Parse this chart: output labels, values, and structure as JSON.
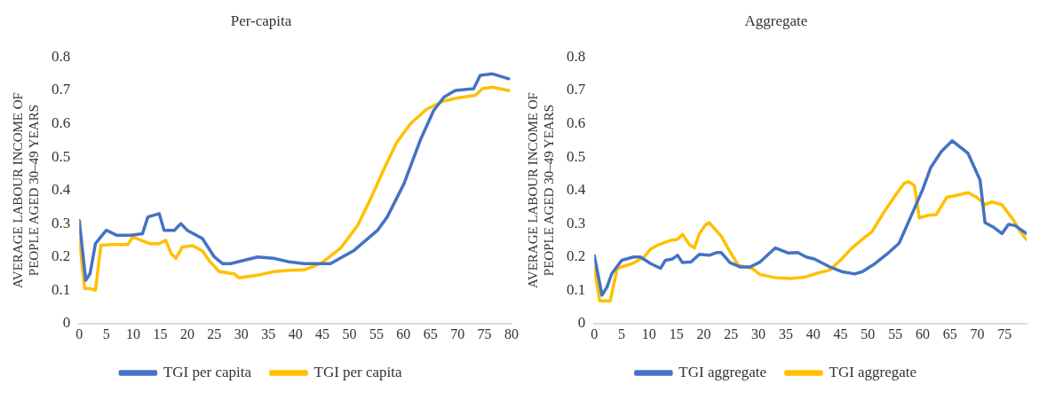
{
  "chart_data": [
    {
      "type": "line",
      "title": "Per-capita",
      "ylabel": "AVERAGE LABOUR INCOME OF PEOPLE AGED 30–49 YEARS",
      "xlim": [
        0,
        80
      ],
      "xticks": [
        0,
        5,
        10,
        15,
        20,
        25,
        30,
        35,
        40,
        45,
        50,
        55,
        60,
        65,
        70,
        75,
        80
      ],
      "ylim": [
        0,
        0.8
      ],
      "yticks": [
        0,
        0.1,
        0.2,
        0.3,
        0.4,
        0.5,
        0.6,
        0.7,
        0.8
      ],
      "grid": false,
      "legend": "bottom",
      "marker": "none",
      "line_style": "solid",
      "series": [
        {
          "name": "TGI per capita",
          "color": "#4472c4",
          "x": [
            0,
            1.2,
            2,
            3,
            5,
            7,
            9.5,
            11.7,
            12.7,
            14.8,
            15.7,
            17.6,
            18.8,
            20,
            22.8,
            25,
            26.5,
            28,
            30.5,
            33,
            36,
            38.9,
            41.6,
            46.5,
            50.9,
            55.2,
            57,
            60.1,
            63.1,
            65.6,
            67.5,
            69.6,
            73,
            74.2,
            76.4,
            79.5
          ],
          "values": [
            0.31,
            0.13,
            0.15,
            0.24,
            0.28,
            0.265,
            0.265,
            0.27,
            0.32,
            0.33,
            0.28,
            0.28,
            0.3,
            0.28,
            0.255,
            0.2,
            0.18,
            0.18,
            0.19,
            0.2,
            0.196,
            0.185,
            0.18,
            0.18,
            0.22,
            0.28,
            0.32,
            0.42,
            0.55,
            0.64,
            0.68,
            0.7,
            0.705,
            0.745,
            0.75,
            0.735
          ]
        },
        {
          "name": "TGI per capita",
          "color": "#ffc000",
          "x": [
            0,
            1,
            2,
            3,
            4,
            5.9,
            9,
            9.9,
            13,
            14.8,
            16,
            17,
            17.9,
            19.1,
            21,
            22.8,
            24,
            25.9,
            27.5,
            28.7,
            29.6,
            33,
            36,
            38.9,
            41.6,
            44.7,
            48.4,
            51.5,
            53.9,
            56.4,
            58.8,
            61.3,
            64.3,
            67.4,
            69.9,
            73.3,
            74.6,
            76.4,
            79.5
          ],
          "values": [
            0.255,
            0.105,
            0.105,
            0.1,
            0.235,
            0.237,
            0.237,
            0.26,
            0.24,
            0.24,
            0.25,
            0.21,
            0.196,
            0.23,
            0.234,
            0.218,
            0.19,
            0.156,
            0.152,
            0.149,
            0.137,
            0.145,
            0.156,
            0.16,
            0.161,
            0.18,
            0.227,
            0.294,
            0.374,
            0.464,
            0.545,
            0.6,
            0.644,
            0.668,
            0.677,
            0.685,
            0.705,
            0.71,
            0.7
          ]
        }
      ]
    },
    {
      "type": "line",
      "title": "Aggregate",
      "ylabel": "AVERAGE LABOUR INCOME OF PEOPLE AGED 30–49 YEARS",
      "xlim": [
        0,
        79
      ],
      "xticks": [
        0,
        5,
        10,
        15,
        20,
        25,
        30,
        35,
        40,
        45,
        50,
        55,
        60,
        65,
        70,
        75
      ],
      "ylim": [
        0,
        0.8
      ],
      "yticks": [
        0,
        0.1,
        0.2,
        0.3,
        0.4,
        0.5,
        0.6,
        0.7,
        0.8
      ],
      "grid": false,
      "legend": "bottom",
      "marker": "none",
      "line_style": "solid",
      "series": [
        {
          "name": "TGI aggregate",
          "color": "#4472c4",
          "x": [
            0,
            1.4,
            2.3,
            3.2,
            5,
            7.2,
            8.4,
            10.3,
            12.1,
            13,
            14.3,
            15.2,
            16.1,
            17.7,
            19.2,
            21,
            22.3,
            23.2,
            24.8,
            26.6,
            28.5,
            30.3,
            33.1,
            35.4,
            37.2,
            38.7,
            40.2,
            43.3,
            45.2,
            47.6,
            49,
            51.3,
            53.8,
            55.7,
            57.5,
            60,
            61.5,
            63.4,
            65.4,
            68.3,
            70.5,
            71.4,
            73,
            74.5,
            75.7,
            76.9,
            79
          ],
          "values": [
            0.204,
            0.085,
            0.109,
            0.15,
            0.19,
            0.2,
            0.2,
            0.18,
            0.166,
            0.19,
            0.194,
            0.205,
            0.183,
            0.185,
            0.208,
            0.205,
            0.213,
            0.213,
            0.183,
            0.17,
            0.17,
            0.185,
            0.227,
            0.212,
            0.213,
            0.2,
            0.194,
            0.168,
            0.156,
            0.149,
            0.156,
            0.18,
            0.213,
            0.241,
            0.308,
            0.402,
            0.469,
            0.516,
            0.549,
            0.511,
            0.431,
            0.303,
            0.289,
            0.27,
            0.298,
            0.294,
            0.27
          ]
        },
        {
          "name": "TGI aggregate",
          "color": "#ffc000",
          "x": [
            0,
            1,
            2.9,
            4.2,
            6.9,
            9.1,
            10.3,
            11.8,
            14,
            15.2,
            16.1,
            17.4,
            18.3,
            19.2,
            20.4,
            21,
            23.2,
            24.5,
            26.3,
            28.8,
            30.3,
            33.4,
            35.9,
            38.4,
            40.9,
            43.1,
            45.2,
            47.1,
            49.5,
            50.7,
            53.2,
            55,
            56.6,
            57.5,
            58.5,
            59.4,
            61,
            62.5,
            64.4,
            66.2,
            68.3,
            69.9,
            71.4,
            72.7,
            74.5,
            76.7,
            77.9,
            79
          ],
          "values": [
            0.168,
            0.068,
            0.068,
            0.166,
            0.18,
            0.2,
            0.224,
            0.237,
            0.25,
            0.253,
            0.268,
            0.237,
            0.227,
            0.27,
            0.298,
            0.303,
            0.262,
            0.224,
            0.175,
            0.166,
            0.147,
            0.137,
            0.135,
            0.139,
            0.152,
            0.161,
            0.194,
            0.227,
            0.26,
            0.275,
            0.341,
            0.384,
            0.421,
            0.426,
            0.414,
            0.317,
            0.325,
            0.327,
            0.379,
            0.385,
            0.393,
            0.379,
            0.357,
            0.365,
            0.357,
            0.308,
            0.275,
            0.251
          ]
        }
      ]
    }
  ]
}
